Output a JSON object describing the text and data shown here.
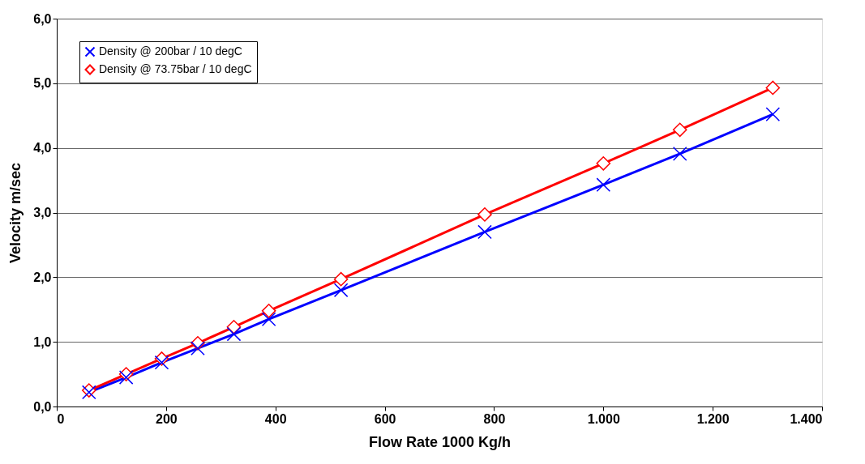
{
  "chart_data": {
    "type": "line",
    "xlabel": "Flow Rate 1000 Kg/h",
    "ylabel": "Velocity m/sec",
    "xlim": [
      0,
      1400
    ],
    "ylim": [
      0,
      6
    ],
    "xticks": [
      0,
      200,
      400,
      600,
      800,
      {
        "value": 1000,
        "label": "1.000"
      },
      {
        "value": 1200,
        "label": "1.200"
      },
      {
        "value": 1400,
        "label": "1.400"
      }
    ],
    "yticks": [
      {
        "value": 0,
        "label": "0,0"
      },
      {
        "value": 1,
        "label": "1,0"
      },
      {
        "value": 2,
        "label": "2,0"
      },
      {
        "value": 3,
        "label": "3,0"
      },
      {
        "value": 4,
        "label": "4,0"
      },
      {
        "value": 5,
        "label": "5,0"
      },
      {
        "value": 6,
        "label": "6,0"
      }
    ],
    "grid": "y",
    "legend": "top left",
    "line_style": "solid",
    "series": [
      {
        "name": "Density @ 200bar / 10 degC",
        "color": "#0000ff",
        "marker": "cross",
        "x": [
          59,
          127,
          192,
          258,
          324,
          388,
          520,
          783,
          1000,
          1140,
          1310
        ],
        "values": [
          0.22,
          0.45,
          0.68,
          0.9,
          1.12,
          1.35,
          1.8,
          2.7,
          3.43,
          3.91,
          4.52
        ]
      },
      {
        "name": "Density @ 73.75bar / 10 degC",
        "color": "#ff0000",
        "marker": "diamond",
        "x": [
          59,
          127,
          192,
          258,
          324,
          388,
          520,
          783,
          1000,
          1140,
          1310
        ],
        "values": [
          0.25,
          0.5,
          0.74,
          0.98,
          1.23,
          1.48,
          1.97,
          2.97,
          3.76,
          4.28,
          4.93
        ]
      }
    ]
  }
}
